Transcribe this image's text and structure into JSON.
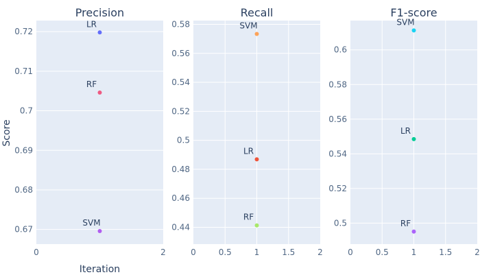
{
  "y_axis_title": "Score",
  "x_axis_title": "Iteration",
  "colors": {
    "plot_bg": "#e5ecf6",
    "grid": "#ffffff",
    "text": "#2a3f5f",
    "tick_text": "#506784"
  },
  "chart_data": [
    {
      "type": "scatter",
      "title": "Precision",
      "xlim": [
        0,
        2
      ],
      "ylim": [
        0.6663,
        0.7228
      ],
      "xticks": [
        "0",
        "2"
      ],
      "xtick_values": [
        0,
        2
      ],
      "yticks": [
        "0.67",
        "0.68",
        "0.69",
        "0.7",
        "0.71",
        "0.72"
      ],
      "ytick_values": [
        0.67,
        0.68,
        0.69,
        0.7,
        0.71,
        0.72
      ],
      "points": [
        {
          "label": "LR",
          "x": 1,
          "y": 0.7198,
          "color": "#636efa"
        },
        {
          "label": "RF",
          "x": 1,
          "y": 0.7046,
          "color": "#ef5a82"
        },
        {
          "label": "SVM",
          "x": 1,
          "y": 0.6696,
          "color": "#b15df0"
        }
      ]
    },
    {
      "type": "scatter",
      "title": "Recall",
      "xlim": [
        0,
        2
      ],
      "ylim": [
        0.4284,
        0.5826
      ],
      "xticks": [
        "0",
        "0.5",
        "1",
        "1.5",
        "2"
      ],
      "xtick_values": [
        0,
        0.5,
        1,
        1.5,
        2
      ],
      "yticks": [
        "0.44",
        "0.46",
        "0.48",
        "0.5",
        "0.52",
        "0.54",
        "0.56",
        "0.58"
      ],
      "ytick_values": [
        0.44,
        0.46,
        0.48,
        0.5,
        0.52,
        0.54,
        0.56,
        0.58
      ],
      "points": [
        {
          "label": "SVM",
          "x": 1,
          "y": 0.5734,
          "color": "#fca35a"
        },
        {
          "label": "LR",
          "x": 1,
          "y": 0.4869,
          "color": "#ef553b"
        },
        {
          "label": "RF",
          "x": 1,
          "y": 0.4413,
          "color": "#a8e86a"
        }
      ]
    },
    {
      "type": "scatter",
      "title": "F1-score",
      "xlim": [
        0,
        2
      ],
      "ylim": [
        0.4879,
        0.6169
      ],
      "xticks": [
        "0",
        "0.5",
        "1",
        "1.5",
        "2"
      ],
      "xtick_values": [
        0,
        0.5,
        1,
        1.5,
        2
      ],
      "yticks": [
        "0.5",
        "0.52",
        "0.54",
        "0.56",
        "0.58",
        "0.6"
      ],
      "ytick_values": [
        0.5,
        0.52,
        0.54,
        0.56,
        0.58,
        0.6
      ],
      "points": [
        {
          "label": "SVM",
          "x": 1,
          "y": 0.6112,
          "color": "#19d3f3"
        },
        {
          "label": "LR",
          "x": 1,
          "y": 0.5485,
          "color": "#00cc96"
        },
        {
          "label": "RF",
          "x": 1,
          "y": 0.4951,
          "color": "#ab63fa"
        }
      ]
    }
  ]
}
